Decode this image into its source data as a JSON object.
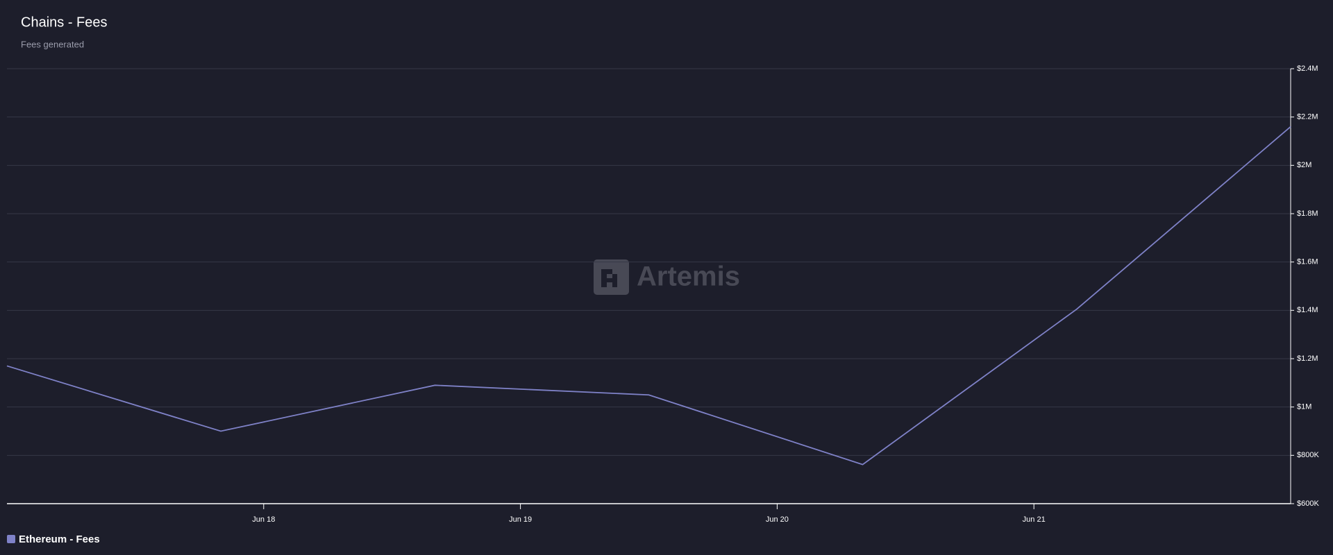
{
  "chart_data": {
    "type": "line",
    "title": "Chains - Fees",
    "subtitle": "Fees generated",
    "watermark": "Artemis",
    "x": [
      17,
      17.833,
      18.667,
      19.5,
      20.333,
      21.167,
      22
    ],
    "xlim": [
      17,
      22
    ],
    "xticks": [
      {
        "value": 18,
        "label": "Jun 18"
      },
      {
        "value": 19,
        "label": "Jun 19"
      },
      {
        "value": 20,
        "label": "Jun 20"
      },
      {
        "value": 21,
        "label": "Jun 21"
      }
    ],
    "series": [
      {
        "name": "Ethereum - Fees",
        "color": "#7f82c8",
        "values": [
          1170000,
          900000,
          1090000,
          1050000,
          762000,
          1405000,
          2160000
        ]
      }
    ],
    "ylim": [
      600000,
      2400000
    ],
    "yticks": [
      {
        "value": 600000,
        "label": "$600K"
      },
      {
        "value": 800000,
        "label": "$800K"
      },
      {
        "value": 1000000,
        "label": "$1M"
      },
      {
        "value": 1200000,
        "label": "$1.2M"
      },
      {
        "value": 1400000,
        "label": "$1.4M"
      },
      {
        "value": 1600000,
        "label": "$1.6M"
      },
      {
        "value": 1800000,
        "label": "$1.8M"
      },
      {
        "value": 2000000,
        "label": "$2M"
      },
      {
        "value": 2200000,
        "label": "$2.2M"
      },
      {
        "value": 2400000,
        "label": "$2.4M"
      }
    ],
    "grid": true,
    "legend": "bottom-left"
  }
}
